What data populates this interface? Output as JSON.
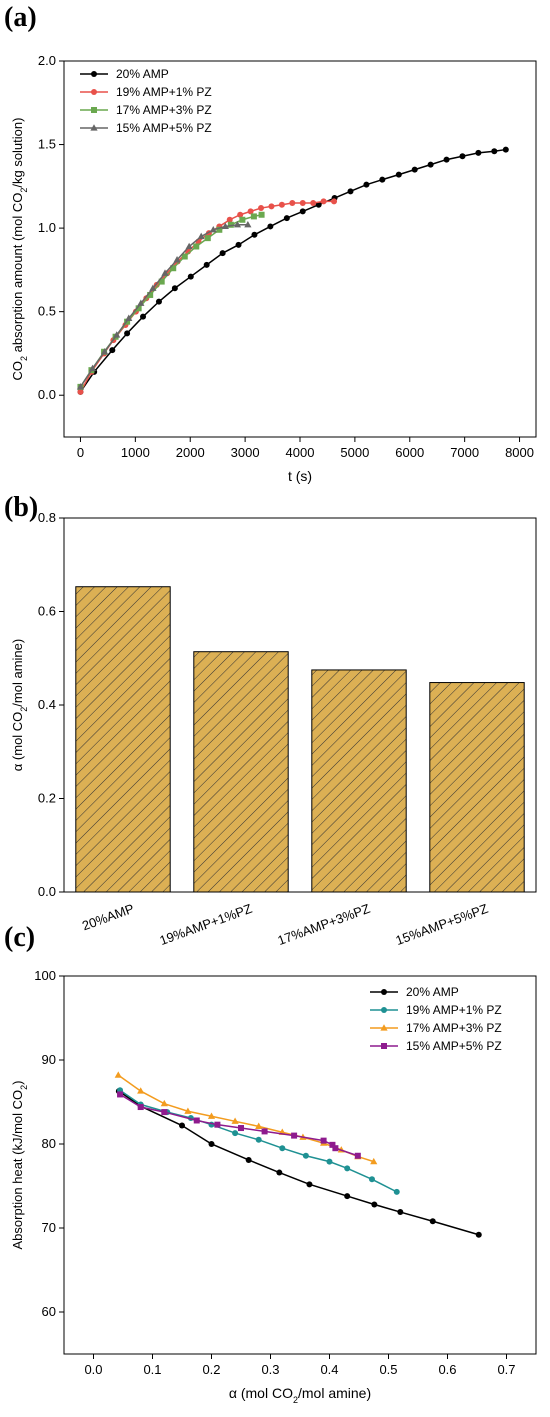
{
  "panels": [
    {
      "panel_label": "(a)",
      "chart_data": {
        "type": "line",
        "xlabel": "t (s)",
        "ylabel_parts": [
          "CO",
          "2",
          " absorption amount (mol CO",
          "2",
          "/kg solution)"
        ],
        "xlim": [
          -300,
          8300
        ],
        "ylim": [
          -0.25,
          2.0
        ],
        "xticks": [
          "0",
          "1000",
          "2000",
          "3000",
          "4000",
          "5000",
          "6000",
          "7000",
          "8000"
        ],
        "yticks": [
          "0.0",
          "0.5",
          "1.0",
          "1.5",
          "2.0"
        ],
        "legend_position": "top-left",
        "grid": false,
        "series": [
          {
            "name": "20% AMP",
            "color": "#000000",
            "marker": "circle",
            "x": [
              0,
              250,
              580,
              850,
              1140,
              1430,
              1720,
              2010,
              2300,
              2590,
              2880,
              3170,
              3460,
              3760,
              4050,
              4340,
              4630,
              4920,
              5210,
              5500,
              5800,
              6090,
              6380,
              6670,
              6960,
              7250,
              7540,
              7750
            ],
            "y": [
              0.02,
              0.14,
              0.27,
              0.37,
              0.47,
              0.56,
              0.64,
              0.71,
              0.78,
              0.85,
              0.9,
              0.96,
              1.01,
              1.06,
              1.1,
              1.14,
              1.18,
              1.22,
              1.26,
              1.29,
              1.32,
              1.35,
              1.38,
              1.41,
              1.43,
              1.45,
              1.46,
              1.47
            ]
          },
          {
            "name": "19% AMP+1% PZ",
            "color": "#e8514a",
            "marker": "circle",
            "x": [
              0,
              200,
              430,
              600,
              820,
              1010,
              1200,
              1390,
              1580,
              1770,
              1960,
              2150,
              2340,
              2530,
              2720,
              2910,
              3100,
              3290,
              3480,
              3670,
              3860,
              4050,
              4240,
              4430,
              4620
            ],
            "y": [
              0.02,
              0.14,
              0.25,
              0.33,
              0.42,
              0.5,
              0.58,
              0.66,
              0.73,
              0.8,
              0.86,
              0.92,
              0.97,
              1.01,
              1.05,
              1.08,
              1.1,
              1.12,
              1.13,
              1.14,
              1.15,
              1.15,
              1.15,
              1.16,
              1.16
            ],
            "y_note": ""
          },
          {
            "name": "17% AMP+3% PZ",
            "color": "#6aa84f",
            "marker": "square",
            "x": [
              0,
              200,
              430,
              640,
              850,
              1060,
              1270,
              1480,
              1690,
              1900,
              2110,
              2320,
              2530,
              2740,
              2950,
              3160,
              3300
            ],
            "y": [
              0.05,
              0.15,
              0.26,
              0.35,
              0.44,
              0.52,
              0.6,
              0.68,
              0.76,
              0.83,
              0.89,
              0.94,
              0.99,
              1.02,
              1.05,
              1.07,
              1.08
            ]
          },
          {
            "name": "15% AMP+5% PZ",
            "color": "#666666",
            "marker": "triangle",
            "x": [
              0,
              220,
              440,
              660,
              880,
              1100,
              1320,
              1540,
              1760,
              1980,
              2200,
              2420,
              2640,
              2860,
              3050
            ],
            "y": [
              0.05,
              0.16,
              0.26,
              0.36,
              0.46,
              0.55,
              0.64,
              0.73,
              0.81,
              0.89,
              0.95,
              0.99,
              1.01,
              1.02,
              1.02
            ]
          }
        ]
      }
    },
    {
      "panel_label": "(b)",
      "chart_data": {
        "type": "bar",
        "ylabel_parts": [
          "α (mol CO",
          "2",
          "/mol amine)"
        ],
        "categories": [
          "20%AMP",
          "19%AMP+1%PZ",
          "17%AMP+3%PZ",
          "15%AMP+5%PZ"
        ],
        "values": [
          0.653,
          0.514,
          0.475,
          0.448
        ],
        "ylim": [
          0,
          0.8
        ],
        "yticks": [
          "0.0",
          "0.2",
          "0.4",
          "0.6",
          "0.8"
        ],
        "bar_color": "#dcb054",
        "hatch": "diagonal",
        "grid": false
      }
    },
    {
      "panel_label": "(c)",
      "chart_data": {
        "type": "line",
        "xlabel_parts": [
          "α (mol CO",
          "2",
          "/mol amine)"
        ],
        "ylabel_parts": [
          "Absorption heat (kJ/mol CO",
          "2",
          ")"
        ],
        "xlim": [
          -0.05,
          0.75
        ],
        "ylim": [
          55,
          100
        ],
        "xticks": [
          "0.0",
          "0.1",
          "0.2",
          "0.3",
          "0.4",
          "0.5",
          "0.6",
          "0.7"
        ],
        "yticks": [
          "60",
          "70",
          "80",
          "90",
          "100"
        ],
        "legend_position": "top-right",
        "grid": false,
        "series": [
          {
            "name": "20% AMP",
            "color": "#000000",
            "marker": "circle",
            "x": [
              0.043,
              0.08,
              0.15,
              0.2,
              0.263,
              0.315,
              0.366,
              0.43,
              0.476,
              0.52,
              0.575,
              0.653
            ],
            "y": [
              86.3,
              84.5,
              82.2,
              80.0,
              78.1,
              76.6,
              75.2,
              73.8,
              72.8,
              71.9,
              70.8,
              69.2
            ]
          },
          {
            "name": "19% AMP+1% PZ",
            "color": "#1f9193",
            "marker": "circle",
            "x": [
              0.045,
              0.08,
              0.125,
              0.165,
              0.2,
              0.24,
              0.28,
              0.32,
              0.36,
              0.4,
              0.43,
              0.472,
              0.514
            ],
            "y": [
              86.4,
              84.7,
              83.8,
              83.1,
              82.3,
              81.3,
              80.5,
              79.5,
              78.6,
              77.9,
              77.1,
              75.8,
              74.3
            ]
          },
          {
            "name": "17% AMP+3% PZ",
            "color": "#f39c1f",
            "marker": "triangle",
            "x": [
              0.042,
              0.08,
              0.12,
              0.16,
              0.2,
              0.24,
              0.28,
              0.32,
              0.355,
              0.39,
              0.42,
              0.448,
              0.475
            ],
            "y": [
              88.2,
              86.3,
              84.8,
              83.9,
              83.3,
              82.7,
              82.1,
              81.4,
              80.8,
              80.1,
              79.3,
              78.5,
              77.9
            ]
          },
          {
            "name": "15% AMP+5% PZ",
            "color": "#8e1b8e",
            "marker": "square",
            "x": [
              0.045,
              0.08,
              0.12,
              0.175,
              0.21,
              0.25,
              0.29,
              0.34,
              0.39,
              0.405,
              0.41,
              0.448
            ],
            "y": [
              85.9,
              84.4,
              83.8,
              82.8,
              82.3,
              81.9,
              81.5,
              81.0,
              80.4,
              79.9,
              79.5,
              78.6
            ]
          }
        ]
      }
    }
  ]
}
